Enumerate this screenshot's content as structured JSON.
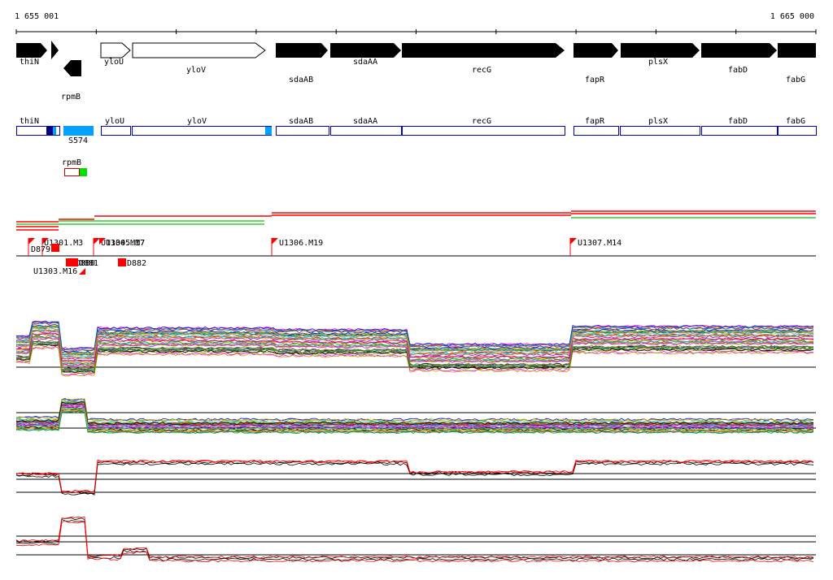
{
  "coords": {
    "start": "1 655 001",
    "end": "1 665 000"
  },
  "genes": [
    {
      "label": "thiN",
      "dir": "right",
      "filled": true,
      "label_row": "top"
    },
    {
      "label": "rpmB",
      "dir": "left",
      "filled": true,
      "label_row": "bottom"
    },
    {
      "label": "yloU",
      "dir": "right",
      "filled": false,
      "label_row": "top"
    },
    {
      "label": "yloV",
      "dir": "right",
      "filled": false,
      "label_row": "mid"
    },
    {
      "label": "sdaAB",
      "dir": "right",
      "filled": true,
      "label_row": "low"
    },
    {
      "label": "sdaAA",
      "dir": "right",
      "filled": true,
      "label_row": "top"
    },
    {
      "label": "recG",
      "dir": "right",
      "filled": true,
      "label_row": "mid"
    },
    {
      "label": "fapR",
      "dir": "right",
      "filled": true,
      "label_row": "low"
    },
    {
      "label": "plsX",
      "dir": "right",
      "filled": true,
      "label_row": "top"
    },
    {
      "label": "fabD",
      "dir": "right",
      "filled": true,
      "label_row": "mid"
    },
    {
      "label": "fabG",
      "dir": "right",
      "filled": true,
      "label_row": "low"
    }
  ],
  "gene_boxes": [
    "thiN",
    "yloU",
    "yloV",
    "sdaAB",
    "sdaAA",
    "recG",
    "fapR",
    "plsX",
    "fabD",
    "fabG"
  ],
  "feature_labels": {
    "s574": "S574",
    "rpmb_box": "rpmB"
  },
  "markers_upper": [
    "D879",
    "U1301.M3",
    "U1304.M17",
    "U1305.M7",
    "U1306.M19",
    "U1307.M14"
  ],
  "markers_lower": [
    "U1303.M16",
    "D880",
    "D881",
    "D882"
  ],
  "colors": {
    "gene_box_border": "#0000cc",
    "highlight_blue": "#00a2ff",
    "dark_blue": "#000080",
    "green": "#00e000",
    "red": "#ff0000",
    "green_line": "#33cc33"
  }
}
